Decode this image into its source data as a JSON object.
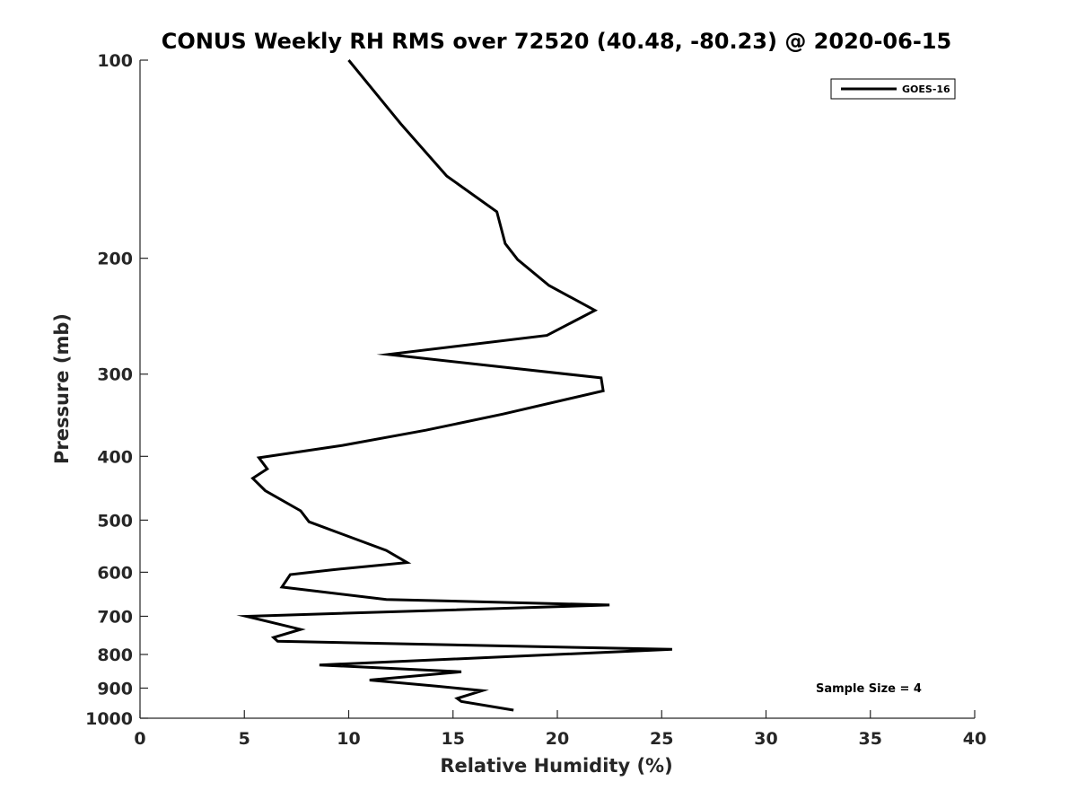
{
  "chart_data": {
    "type": "line",
    "title": "CONUS Weekly RH RMS over 72520 (40.48, -80.23) @ 2020-06-15",
    "xlabel": "Relative Humidity (%)",
    "ylabel": "Pressure (mb)",
    "xlim": [
      0,
      40
    ],
    "ylim": [
      100,
      1000
    ],
    "y_scale": "log",
    "y_reversed": true,
    "grid": false,
    "legend_position": "top-right",
    "x_ticks": [
      0,
      5,
      10,
      15,
      20,
      25,
      30,
      35,
      40
    ],
    "y_ticks": [
      100,
      200,
      300,
      400,
      500,
      600,
      700,
      800,
      900,
      1000
    ],
    "series": [
      {
        "name": "GOES-16",
        "color": "#000000",
        "x": [
          10.0,
          12.5,
          14.7,
          17.1,
          17.5,
          18.1,
          19.6,
          21.8,
          19.5,
          11.9,
          22.1,
          22.2,
          17.4,
          13.7,
          9.7,
          5.7,
          6.1,
          5.4,
          6.0,
          7.7,
          8.1,
          11.8,
          12.8,
          9.2,
          7.2,
          6.8,
          11.8,
          22.5,
          5.1,
          7.7,
          6.4,
          6.6,
          25.5,
          8.6,
          15.4,
          11.0,
          14.2,
          16.4,
          15.2,
          15.4,
          17.9
        ],
        "y": [
          100,
          125,
          150,
          170,
          190,
          201,
          220,
          240,
          262,
          280,
          304,
          318,
          345,
          365,
          385,
          402,
          418,
          432,
          451,
          484,
          503,
          556,
          580,
          595,
          605,
          632,
          660,
          673,
          700,
          733,
          754,
          764,
          786,
          830,
          850,
          875,
          894,
          908,
          933,
          943,
          972
        ]
      }
    ],
    "annotations": [
      {
        "text": "Sample Size = 4"
      }
    ]
  }
}
